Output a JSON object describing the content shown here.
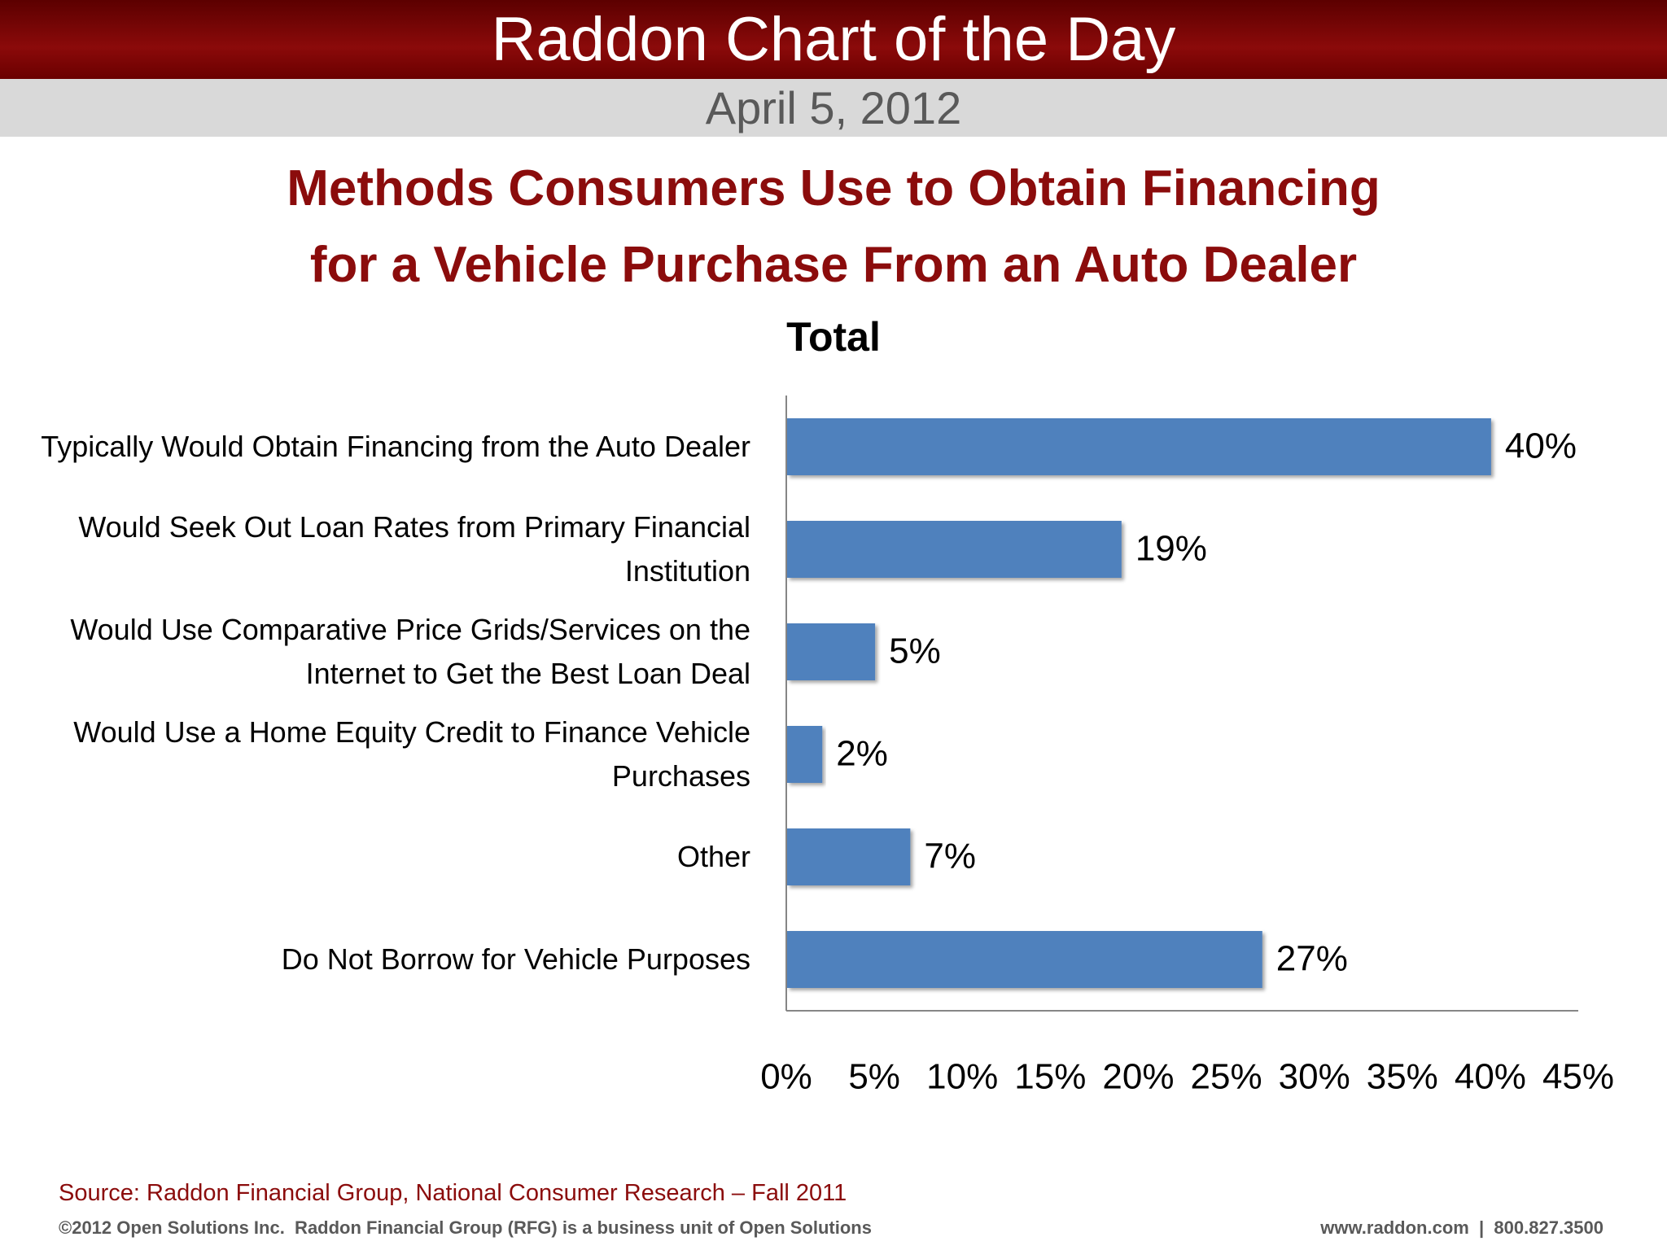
{
  "header": {
    "title": "Raddon Chart of the Day",
    "date": "April 5, 2012"
  },
  "chart_data": {
    "type": "bar",
    "orientation": "horizontal",
    "title": [
      "Methods Consumers Use to Obtain Financing",
      "for a Vehicle Purchase From an Auto Dealer"
    ],
    "subtitle": "Total",
    "categories": [
      "Typically Would Obtain Financing from the Auto Dealer",
      "Would Seek Out Loan Rates from Primary Financial Institution",
      "Would Use Comparative Price Grids/Services on the Internet to Get the Best Loan Deal",
      "Would Use a Home Equity Credit to Finance Vehicle Purchases",
      "Other",
      "Do Not Borrow for Vehicle Purposes"
    ],
    "values": [
      40,
      19,
      5,
      2,
      7,
      27
    ],
    "value_labels": [
      "40%",
      "19%",
      "5%",
      "2%",
      "7%",
      "27%"
    ],
    "color": "#4f81bd",
    "xlim": [
      0,
      45
    ],
    "xticks": [
      {
        "value": 0,
        "label": "0%"
      },
      {
        "value": 5,
        "label": "5%"
      },
      {
        "value": 10,
        "label": "10%"
      },
      {
        "value": 15,
        "label": "15%"
      },
      {
        "value": 20,
        "label": "20%"
      },
      {
        "value": 25,
        "label": "25%"
      },
      {
        "value": 30,
        "label": "30%"
      },
      {
        "value": 35,
        "label": "35%"
      },
      {
        "value": 40,
        "label": "40%"
      },
      {
        "value": 45,
        "label": "45%"
      }
    ],
    "grid": false
  },
  "footer": {
    "source": "Source: Raddon Financial Group, National Consumer Research – Fall 2011",
    "copyright": "©2012 Open Solutions Inc.  Raddon Financial Group (RFG) is a business unit of Open Solutions",
    "contact": "www.raddon.com  |  800.827.3500"
  }
}
